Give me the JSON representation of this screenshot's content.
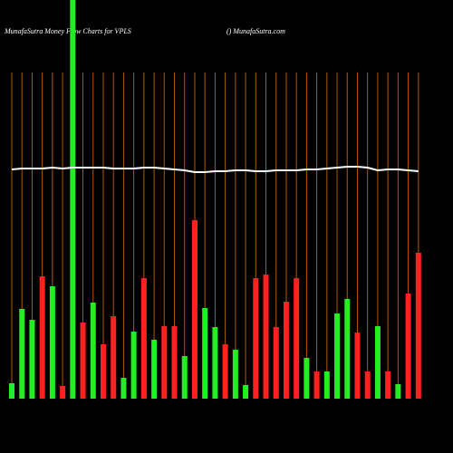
{
  "chart_data": {
    "type": "bar",
    "title": "MunafaSutra  Money Flow  Charts for VPLS",
    "subtitle": "() MunafaSutra.com",
    "ylim": [
      0,
      440
    ],
    "values": [
      17,
      99,
      87,
      135,
      124,
      14,
      440,
      84,
      106,
      60,
      91,
      23,
      74,
      133,
      65,
      80,
      80,
      47,
      197,
      100,
      79,
      60,
      54,
      15,
      133,
      137,
      79,
      107,
      133,
      45,
      30,
      30,
      94,
      110,
      73,
      30,
      80,
      30,
      16,
      116,
      161
    ],
    "colors": [
      "#22ee22",
      "#22ee22",
      "#22ee22",
      "#ff2020",
      "#22ee22",
      "#ff2020",
      "#22ee22",
      "#ff2020",
      "#22ee22",
      "#ff2020",
      "#ff2020",
      "#22ee22",
      "#22ee22",
      "#ff2020",
      "#22ee22",
      "#ff2020",
      "#ff2020",
      "#22ee22",
      "#ff2020",
      "#22ee22",
      "#22ee22",
      "#ff2020",
      "#22ee22",
      "#22ee22",
      "#ff2020",
      "#ff2020",
      "#ff2020",
      "#ff2020",
      "#ff2020",
      "#22ee22",
      "#ff2020",
      "#22ee22",
      "#22ee22",
      "#22ee22",
      "#ff2020",
      "#ff2020",
      "#22ee22",
      "#ff2020",
      "#22ee22",
      "#ff2020",
      "#ff2020"
    ],
    "line": {
      "color": "#ffffff",
      "values": [
        253,
        254,
        254,
        254,
        255,
        254,
        255,
        255,
        255,
        255,
        254,
        254,
        254,
        255,
        255,
        254,
        253,
        252,
        250,
        250,
        251,
        251,
        252,
        252,
        251,
        251,
        252,
        252,
        252,
        253,
        253,
        254,
        255,
        256,
        256,
        255,
        252,
        253,
        253,
        252,
        251
      ]
    },
    "grid_color": "#b05a00"
  }
}
